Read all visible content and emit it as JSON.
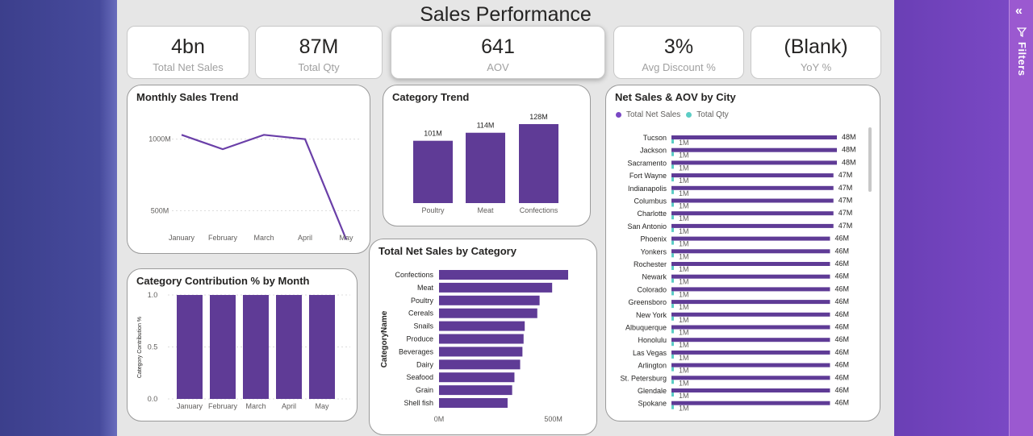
{
  "page": {
    "title": "Sales Performance"
  },
  "filters_pane": {
    "label": "Filters",
    "collapse_icon": "chevron-double-left-icon",
    "filter_icon": "funnel-icon"
  },
  "kpis": [
    {
      "value": "4bn",
      "label": "Total Net Sales"
    },
    {
      "value": "87M",
      "label": "Total Qty"
    },
    {
      "value": "641",
      "label": "AOV"
    },
    {
      "value": "3%",
      "label": "Avg Discount %"
    },
    {
      "value": "(Blank)",
      "label": "YoY %"
    }
  ],
  "visuals": {
    "monthly_trend": {
      "title": "Monthly Sales Trend"
    },
    "category_trend": {
      "title": "Category Trend"
    },
    "city": {
      "title": "Net Sales & AOV by City",
      "legend": [
        "Total Net Sales",
        "Total Qty"
      ]
    },
    "contribution": {
      "title": "Category Contribution % by Month"
    },
    "net_by_category": {
      "title": "Total Net Sales by Category"
    }
  },
  "colors": {
    "purple": "#5f3b96",
    "line": "#6a3fa8",
    "teal": "#5ccdc5",
    "legend_purple": "#7a48c4"
  },
  "chart_data": [
    {
      "id": "monthly_trend",
      "type": "line",
      "categories": [
        "January",
        "February",
        "March",
        "April",
        "May"
      ],
      "values": [
        1030,
        930,
        1030,
        1000,
        300
      ],
      "yticks": [
        {
          "v": 1000,
          "t": "1000M"
        },
        {
          "v": 500,
          "t": "500M"
        }
      ],
      "ylim": [
        250,
        1150
      ]
    },
    {
      "id": "category_trend",
      "type": "bar",
      "categories": [
        "Poultry",
        "Meat",
        "Confections"
      ],
      "values": [
        101,
        114,
        128
      ],
      "labels": [
        "101M",
        "114M",
        "128M"
      ],
      "ylim": [
        0,
        128
      ]
    },
    {
      "id": "city",
      "type": "bar",
      "orientation": "horizontal",
      "categories": [
        "Tucson",
        "Jackson",
        "Sacramento",
        "Fort Wayne",
        "Indianapolis",
        "Columbus",
        "Charlotte",
        "San Antonio",
        "Phoenix",
        "Yonkers",
        "Rochester",
        "Newark",
        "Colorado",
        "Greensboro",
        "New York",
        "Albuquerque",
        "Honolulu",
        "Las Vegas",
        "Arlington",
        "St. Petersburg",
        "Glendale",
        "Spokane"
      ],
      "series": [
        {
          "name": "Total Net Sales",
          "values": [
            48,
            48,
            48,
            47,
            47,
            47,
            47,
            47,
            46,
            46,
            46,
            46,
            46,
            46,
            46,
            46,
            46,
            46,
            46,
            46,
            46,
            46
          ],
          "labels": [
            "48M",
            "48M",
            "48M",
            "47M",
            "47M",
            "47M",
            "47M",
            "47M",
            "46M",
            "46M",
            "46M",
            "46M",
            "46M",
            "46M",
            "46M",
            "46M",
            "46M",
            "46M",
            "46M",
            "46M",
            "46M",
            "46M"
          ]
        },
        {
          "name": "Total Qty",
          "values": [
            1,
            1,
            1,
            1,
            1,
            1,
            1,
            1,
            1,
            1,
            1,
            1,
            1,
            1,
            1,
            1,
            1,
            1,
            1,
            1,
            1,
            1
          ],
          "labels": [
            "1M",
            "1M",
            "1M",
            "1M",
            "1M",
            "1M",
            "1M",
            "1M",
            "1M",
            "1M",
            "1M",
            "1M",
            "1M",
            "1M",
            "1M",
            "1M",
            "1M",
            "1M",
            "1M",
            "1M",
            "1M",
            "1M"
          ]
        }
      ],
      "xlim": [
        0,
        48
      ]
    },
    {
      "id": "contribution",
      "type": "bar",
      "categories": [
        "January",
        "February",
        "March",
        "April",
        "May"
      ],
      "values": [
        1.0,
        1.0,
        1.0,
        1.0,
        1.0
      ],
      "ylabel": "Category Contribution %",
      "yticks": [
        {
          "v": 1.0,
          "t": "1.0"
        },
        {
          "v": 0.5,
          "t": "0.5"
        },
        {
          "v": 0.0,
          "t": "0.0"
        }
      ],
      "ylim": [
        0,
        1
      ]
    },
    {
      "id": "net_by_category",
      "type": "bar",
      "orientation": "horizontal",
      "categories": [
        "Confections",
        "Meat",
        "Poultry",
        "Cereals",
        "Snails",
        "Produce",
        "Beverages",
        "Dairy",
        "Seafood",
        "Grain",
        "Shell fish"
      ],
      "values": [
        565,
        495,
        440,
        430,
        375,
        370,
        365,
        355,
        330,
        320,
        300
      ],
      "ylabel": "CategoryName",
      "xticks": [
        {
          "v": 0,
          "t": "0M"
        },
        {
          "v": 500,
          "t": "500M"
        }
      ],
      "xlim": [
        0,
        565
      ]
    }
  ]
}
